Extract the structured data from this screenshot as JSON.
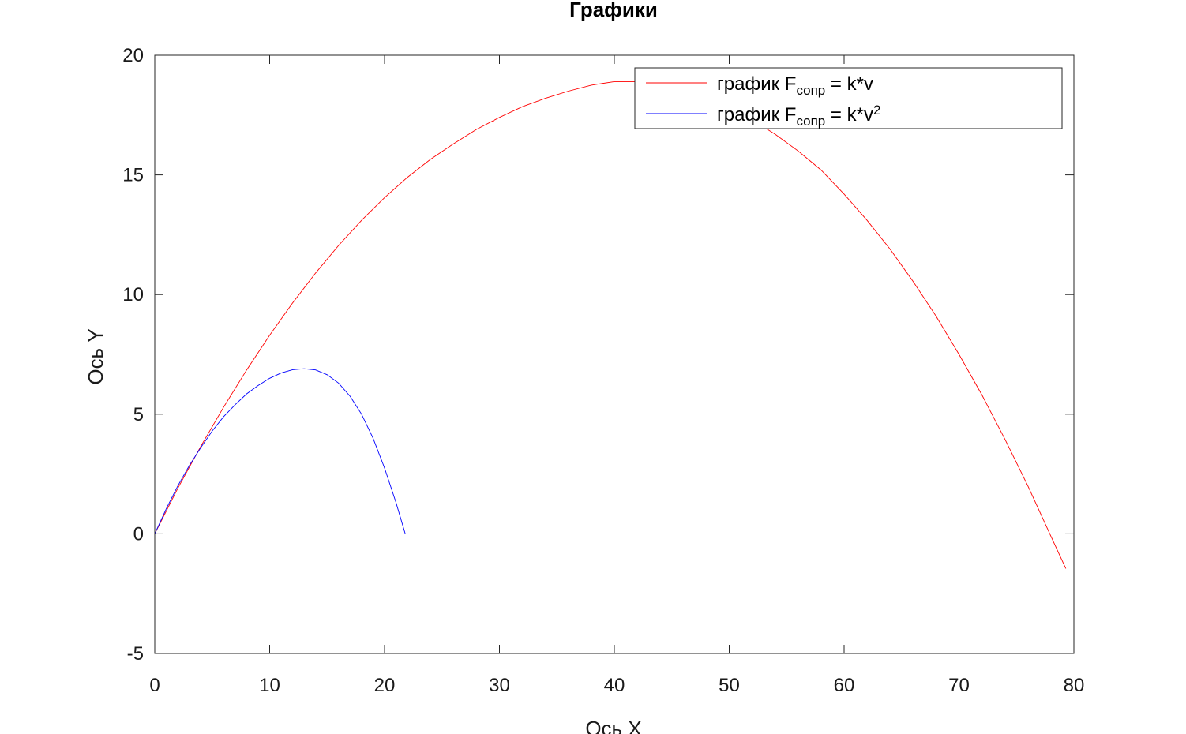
{
  "chart_data": {
    "type": "line",
    "title": "Графики",
    "xlabel": "Ось X",
    "ylabel": "Ось Y",
    "xlim": [
      0,
      80
    ],
    "ylim": [
      -5,
      20
    ],
    "xticks": [
      0,
      10,
      20,
      30,
      40,
      50,
      60,
      70,
      80
    ],
    "yticks": [
      -5,
      0,
      5,
      10,
      15,
      20
    ],
    "grid": false,
    "legend_position": "top-right",
    "legend": [
      {
        "prefix": "график F",
        "sub": "сопр",
        "suffix": " = k*v",
        "sup": "",
        "color": "#ff0000"
      },
      {
        "prefix": "график F",
        "sub": "сопр",
        "suffix": " = k*v",
        "sup": "2",
        "color": "#0000ff"
      }
    ],
    "series": [
      {
        "color": "#ff0000",
        "x": [
          0,
          2,
          4,
          6,
          8,
          10,
          12,
          14,
          16,
          18,
          20,
          22,
          24,
          26,
          28,
          30,
          32,
          34,
          36,
          38,
          40,
          42,
          44,
          46,
          48,
          50,
          52,
          54,
          56,
          58,
          60,
          62,
          64,
          66,
          68,
          70,
          72,
          74,
          76,
          78,
          79.3
        ],
        "y": [
          0,
          1.9,
          3.65,
          5.3,
          6.85,
          8.3,
          9.65,
          10.9,
          12.05,
          13.1,
          14.05,
          14.9,
          15.65,
          16.3,
          16.9,
          17.4,
          17.85,
          18.2,
          18.5,
          18.75,
          18.9,
          18.9,
          18.8,
          18.6,
          18.25,
          17.8,
          17.3,
          16.7,
          16.0,
          15.2,
          14.2,
          13.1,
          11.9,
          10.55,
          9.1,
          7.5,
          5.8,
          3.95,
          2.0,
          -0.1,
          -1.45
        ]
      },
      {
        "color": "#0000ff",
        "x": [
          0,
          1,
          2,
          3,
          4,
          5,
          6,
          7,
          8,
          9,
          10,
          11,
          12,
          13,
          14,
          15,
          16,
          17,
          18,
          19,
          20,
          21,
          21.8
        ],
        "y": [
          0,
          1.05,
          2.0,
          2.85,
          3.6,
          4.3,
          4.9,
          5.4,
          5.85,
          6.2,
          6.5,
          6.72,
          6.86,
          6.9,
          6.85,
          6.65,
          6.3,
          5.75,
          5.0,
          4.0,
          2.75,
          1.3,
          0
        ]
      }
    ]
  }
}
